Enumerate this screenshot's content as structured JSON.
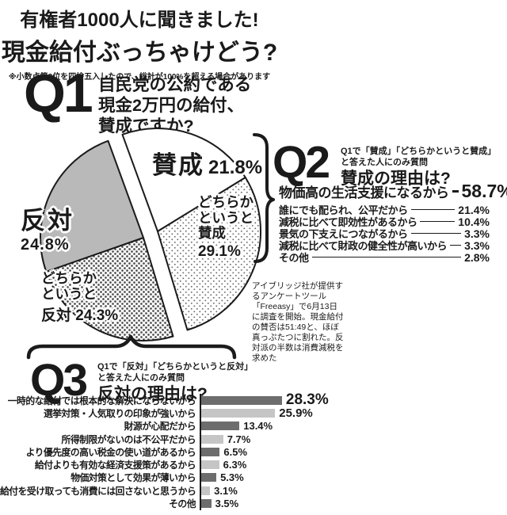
{
  "header": {
    "title_line1": "有権者1000人に聞きました!",
    "title_line2": "現金給付ぶっちゃけどう?",
    "note": "※小数点第2位を四捨五入したので、総計が100%を超える場合があります"
  },
  "q1": {
    "label": "Q1",
    "question": "自民党の公約である\n現金2万円の給付、\n賛成ですか?"
  },
  "q2": {
    "label": "Q2",
    "subtitle": "Q1で「賛成」「どちらかというと賛成」\nと答えた人にのみ質問",
    "title": "賛成の理由は?"
  },
  "q3": {
    "label": "Q3",
    "subtitle": "Q1で「反対」「どちらかというと反対」\nと答えた人にのみ質問",
    "title": "反対の理由は?"
  },
  "pie_labels": {
    "favor": {
      "name": "賛成",
      "pct": "21.8%"
    },
    "somewhat_favor": {
      "lines": "どちらか\nというと\n賛成",
      "pct": "29.1%"
    },
    "oppose": {
      "name": "反対",
      "pct": "24.8%"
    },
    "somewhat_oppose": {
      "lines": "どちらか\nというと",
      "last_line": "反対 24.3%"
    }
  },
  "side_note": "アイブリッジ社が提供するアンケートツール「Freeasy」で6月13日に調査を開始。現金給付の賛否は51:49と、ほぼ真っぷたつに割れた。反対派の半数は消費減税を求めた",
  "colors": {
    "ink": "#1a1a1a",
    "oppose_slice": "#b9b9b9",
    "bar_dark": "#6d6d6d",
    "bar_light": "#c5c5c5"
  },
  "chart_data": [
    {
      "type": "pie",
      "title": "Q1 自民党の公約である現金2万円の給付、賛成ですか?",
      "labels": [
        "賛成",
        "どちらかというと賛成",
        "どちらかというと反対",
        "反対"
      ],
      "values": [
        21.8,
        29.1,
        24.3,
        24.8
      ],
      "unit": "%",
      "layout_hint": "exploded into two halves: 賛成+どちらかというと賛成 (right half, brace to Q2), 反対+どちらかというと反対 (left half, brace to Q3)"
    },
    {
      "type": "bar",
      "title": "Q2 賛成の理由は?",
      "orientation": "list-with-leader-lines",
      "unit": "%",
      "rows": [
        {
          "label": "物価高の生活支援になるから",
          "value": 58.7,
          "display": "58.7%"
        },
        {
          "label": "誰にでも配られ、公平だから",
          "value": 21.4,
          "display": "21.4%"
        },
        {
          "label": "減税に比べて即効性があるから",
          "value": 10.4,
          "display": "10.4%"
        },
        {
          "label": "景気の下支えにつながるから",
          "value": 3.3,
          "display": "3.3%"
        },
        {
          "label": "減税に比べて財政の健全性が高いから",
          "value": 3.3,
          "display": "3.3%"
        },
        {
          "label": "その他",
          "value": 2.8,
          "display": "2.8%"
        }
      ]
    },
    {
      "type": "bar",
      "title": "Q3 反対の理由は?",
      "orientation": "horizontal",
      "xlim": [
        0,
        30
      ],
      "unit": "%",
      "rows": [
        {
          "label": "一時的な給付では根本的な解決にならないから",
          "value": 28.3,
          "display": "28.3%",
          "shade": "dark"
        },
        {
          "label": "選挙対策・人気取りの印象が強いから",
          "value": 25.9,
          "display": "25.9%",
          "shade": "light"
        },
        {
          "label": "財源が心配だから",
          "value": 13.4,
          "display": "13.4%",
          "shade": "dark"
        },
        {
          "label": "所得制限がないのは不公平だから",
          "value": 7.7,
          "display": "7.7%",
          "shade": "light"
        },
        {
          "label": "より優先度の高い税金の使い道があるから",
          "value": 6.5,
          "display": "6.5%",
          "shade": "dark"
        },
        {
          "label": "給付よりも有効な経済支援策があるから",
          "value": 6.3,
          "display": "6.3%",
          "shade": "light"
        },
        {
          "label": "物価対策として効果が薄いから",
          "value": 5.3,
          "display": "5.3%",
          "shade": "dark"
        },
        {
          "label": "給付を受け取っても消費には回さないと思うから",
          "value": 3.1,
          "display": "3.1%",
          "shade": "light"
        },
        {
          "label": "その他",
          "value": 3.5,
          "display": "3.5%",
          "shade": "dark"
        }
      ]
    }
  ]
}
